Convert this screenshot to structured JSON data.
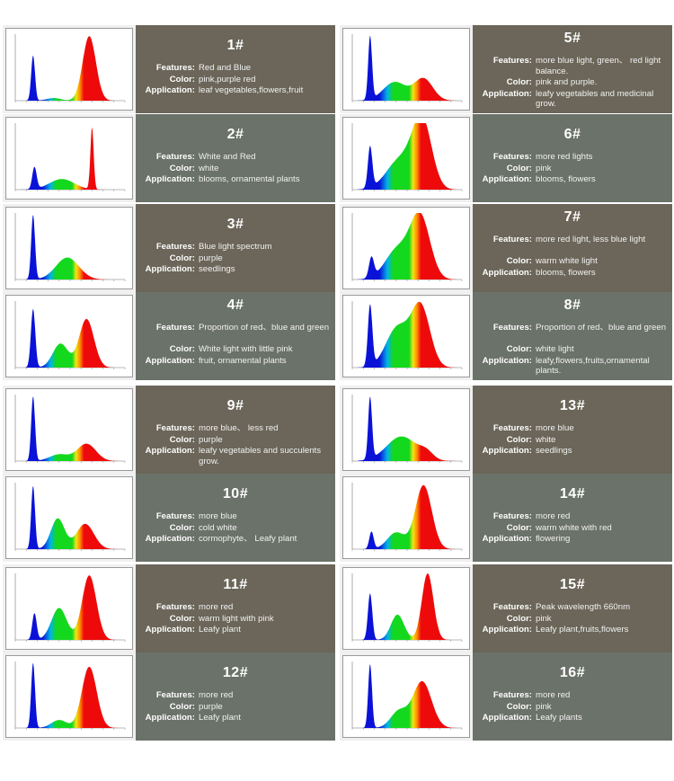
{
  "panels": [
    {
      "id": "1#",
      "bg": "#6b6659",
      "features": "Red and Blue",
      "color": "pink,purple red",
      "application": "leaf vegetables,flowers,fruit",
      "chart_data": {
        "type": "area",
        "peaks": [
          {
            "x": 445,
            "h": 0.68,
            "w": 7
          },
          {
            "x": 520,
            "h": 0.04,
            "w": 25
          },
          {
            "x": 650,
            "h": 0.97,
            "w": 24
          }
        ]
      }
    },
    {
      "id": "5#",
      "bg": "#6b6659",
      "features": "more blue light, green、 red light balance.",
      "color": "pink and purple.",
      "application": "leafy vegetables and medicinal grow.",
      "chart_data": {
        "type": "area",
        "peaks": [
          {
            "x": 445,
            "h": 0.95,
            "w": 7
          },
          {
            "x": 535,
            "h": 0.28,
            "w": 42
          },
          {
            "x": 640,
            "h": 0.33,
            "w": 34
          }
        ]
      }
    },
    {
      "id": "2#",
      "bg": "#6b7269",
      "features": "White and Red",
      "color": "white",
      "application": "blooms, ornamental plants",
      "chart_data": {
        "type": "area",
        "peaks": [
          {
            "x": 450,
            "h": 0.33,
            "w": 8
          },
          {
            "x": 550,
            "h": 0.16,
            "w": 45
          },
          {
            "x": 660,
            "h": 0.93,
            "w": 6
          }
        ]
      }
    },
    {
      "id": "6#",
      "bg": "#6b7269",
      "features": "more red lights",
      "color": "pink",
      "application": "blooms, flowers",
      "chart_data": {
        "type": "area",
        "peaks": [
          {
            "x": 445,
            "h": 0.62,
            "w": 8
          },
          {
            "x": 555,
            "h": 0.45,
            "w": 50
          },
          {
            "x": 635,
            "h": 1.0,
            "w": 35
          }
        ]
      }
    },
    {
      "id": "3#",
      "bg": "#6b6659",
      "features": "Blue light spectrum",
      "color": "purple",
      "application": "seedlings",
      "chart_data": {
        "type": "area",
        "peaks": [
          {
            "x": 445,
            "h": 0.97,
            "w": 7
          },
          {
            "x": 570,
            "h": 0.33,
            "w": 42
          }
        ]
      }
    },
    {
      "id": "7#",
      "bg": "#6b6659",
      "features": "more red light, less blue light",
      "color": "warm white light",
      "application": "blooms, flowers",
      "chart_data": {
        "type": "area",
        "peaks": [
          {
            "x": 450,
            "h": 0.3,
            "w": 9
          },
          {
            "x": 545,
            "h": 0.45,
            "w": 45
          },
          {
            "x": 628,
            "h": 0.93,
            "w": 36
          }
        ]
      }
    },
    {
      "id": "4#",
      "bg": "#6b7269",
      "features": "Proportion of red、blue and green",
      "color": "White light with little pink",
      "application": "fruit, ornamental plants",
      "chart_data": {
        "type": "area",
        "peaks": [
          {
            "x": 445,
            "h": 0.88,
            "w": 8
          },
          {
            "x": 545,
            "h": 0.36,
            "w": 28
          },
          {
            "x": 640,
            "h": 0.73,
            "w": 27
          }
        ]
      }
    },
    {
      "id": "8#",
      "bg": "#6b7269",
      "features": "Proportion of red、blue and green",
      "color": "white light",
      "application": "leafy,flowers,fruits,ornamental plants.",
      "chart_data": {
        "type": "area",
        "peaks": [
          {
            "x": 445,
            "h": 0.92,
            "w": 8
          },
          {
            "x": 545,
            "h": 0.6,
            "w": 42
          },
          {
            "x": 630,
            "h": 0.9,
            "w": 34
          }
        ]
      }
    },
    {
      "id": "9#",
      "bg": "#6b6659",
      "features": "more blue、 less red",
      "color": "purple",
      "application": "leafy vegetables and succulents grow.",
      "chart_data": {
        "type": "area",
        "peaks": [
          {
            "x": 445,
            "h": 0.97,
            "w": 7
          },
          {
            "x": 540,
            "h": 0.1,
            "w": 35
          },
          {
            "x": 640,
            "h": 0.26,
            "w": 34
          }
        ]
      }
    },
    {
      "id": "13#",
      "bg": "#6b6659",
      "features": "more blue",
      "color": "white",
      "application": "seedlings",
      "chart_data": {
        "type": "area",
        "peaks": [
          {
            "x": 445,
            "h": 0.93,
            "w": 7
          },
          {
            "x": 560,
            "h": 0.37,
            "w": 55
          },
          {
            "x": 650,
            "h": 0.1,
            "w": 25
          }
        ]
      }
    },
    {
      "id": "10#",
      "bg": "#6b7269",
      "features": "more blue",
      "color": "cold white",
      "application": "cormophyte、 Leafy plant",
      "chart_data": {
        "type": "area",
        "peaks": [
          {
            "x": 445,
            "h": 0.95,
            "w": 7
          },
          {
            "x": 535,
            "h": 0.46,
            "w": 25
          },
          {
            "x": 635,
            "h": 0.38,
            "w": 32
          }
        ]
      }
    },
    {
      "id": "14#",
      "bg": "#6b7269",
      "features": "more red",
      "color": "warm white with red",
      "application": "flowering",
      "chart_data": {
        "type": "area",
        "peaks": [
          {
            "x": 450,
            "h": 0.26,
            "w": 8
          },
          {
            "x": 540,
            "h": 0.25,
            "w": 32
          },
          {
            "x": 640,
            "h": 0.96,
            "w": 30
          }
        ]
      }
    },
    {
      "id": "11#",
      "bg": "#6b6659",
      "features": "more red",
      "color": "warm light with pink",
      "application": "Leafy plant",
      "chart_data": {
        "type": "area",
        "peaks": [
          {
            "x": 450,
            "h": 0.4,
            "w": 8
          },
          {
            "x": 540,
            "h": 0.48,
            "w": 28
          },
          {
            "x": 650,
            "h": 0.97,
            "w": 26
          }
        ]
      }
    },
    {
      "id": "15#",
      "bg": "#6b6659",
      "features": "Peak wavelength 660nm",
      "color": "pink",
      "application": "Leafy plant,fruits,flowers",
      "chart_data": {
        "type": "area",
        "peaks": [
          {
            "x": 445,
            "h": 0.7,
            "w": 8
          },
          {
            "x": 545,
            "h": 0.38,
            "w": 24
          },
          {
            "x": 655,
            "h": 1.0,
            "w": 21
          }
        ]
      }
    },
    {
      "id": "12#",
      "bg": "#6b7269",
      "features": "more red",
      "color": "purple",
      "application": "Leafy plant",
      "chart_data": {
        "type": "area",
        "peaks": [
          {
            "x": 445,
            "h": 0.98,
            "w": 7
          },
          {
            "x": 540,
            "h": 0.12,
            "w": 28
          },
          {
            "x": 650,
            "h": 0.92,
            "w": 27
          }
        ]
      }
    },
    {
      "id": "16#",
      "bg": "#6b7269",
      "features": "more red",
      "color": "pink",
      "application": "Leafy plants",
      "chart_data": {
        "type": "area",
        "peaks": [
          {
            "x": 445,
            "h": 0.96,
            "w": 7
          },
          {
            "x": 550,
            "h": 0.25,
            "w": 30
          },
          {
            "x": 635,
            "h": 0.7,
            "w": 34
          }
        ]
      }
    }
  ],
  "labels": {
    "features": "Features:",
    "color": "Color:",
    "application": "Application:"
  },
  "colors": {
    "blue": "#0a12d8",
    "cyan": "#00b4e6",
    "green": "#14d81e",
    "yellow": "#f0e614",
    "orange": "#ff8c00",
    "red": "#ee0a0a"
  }
}
